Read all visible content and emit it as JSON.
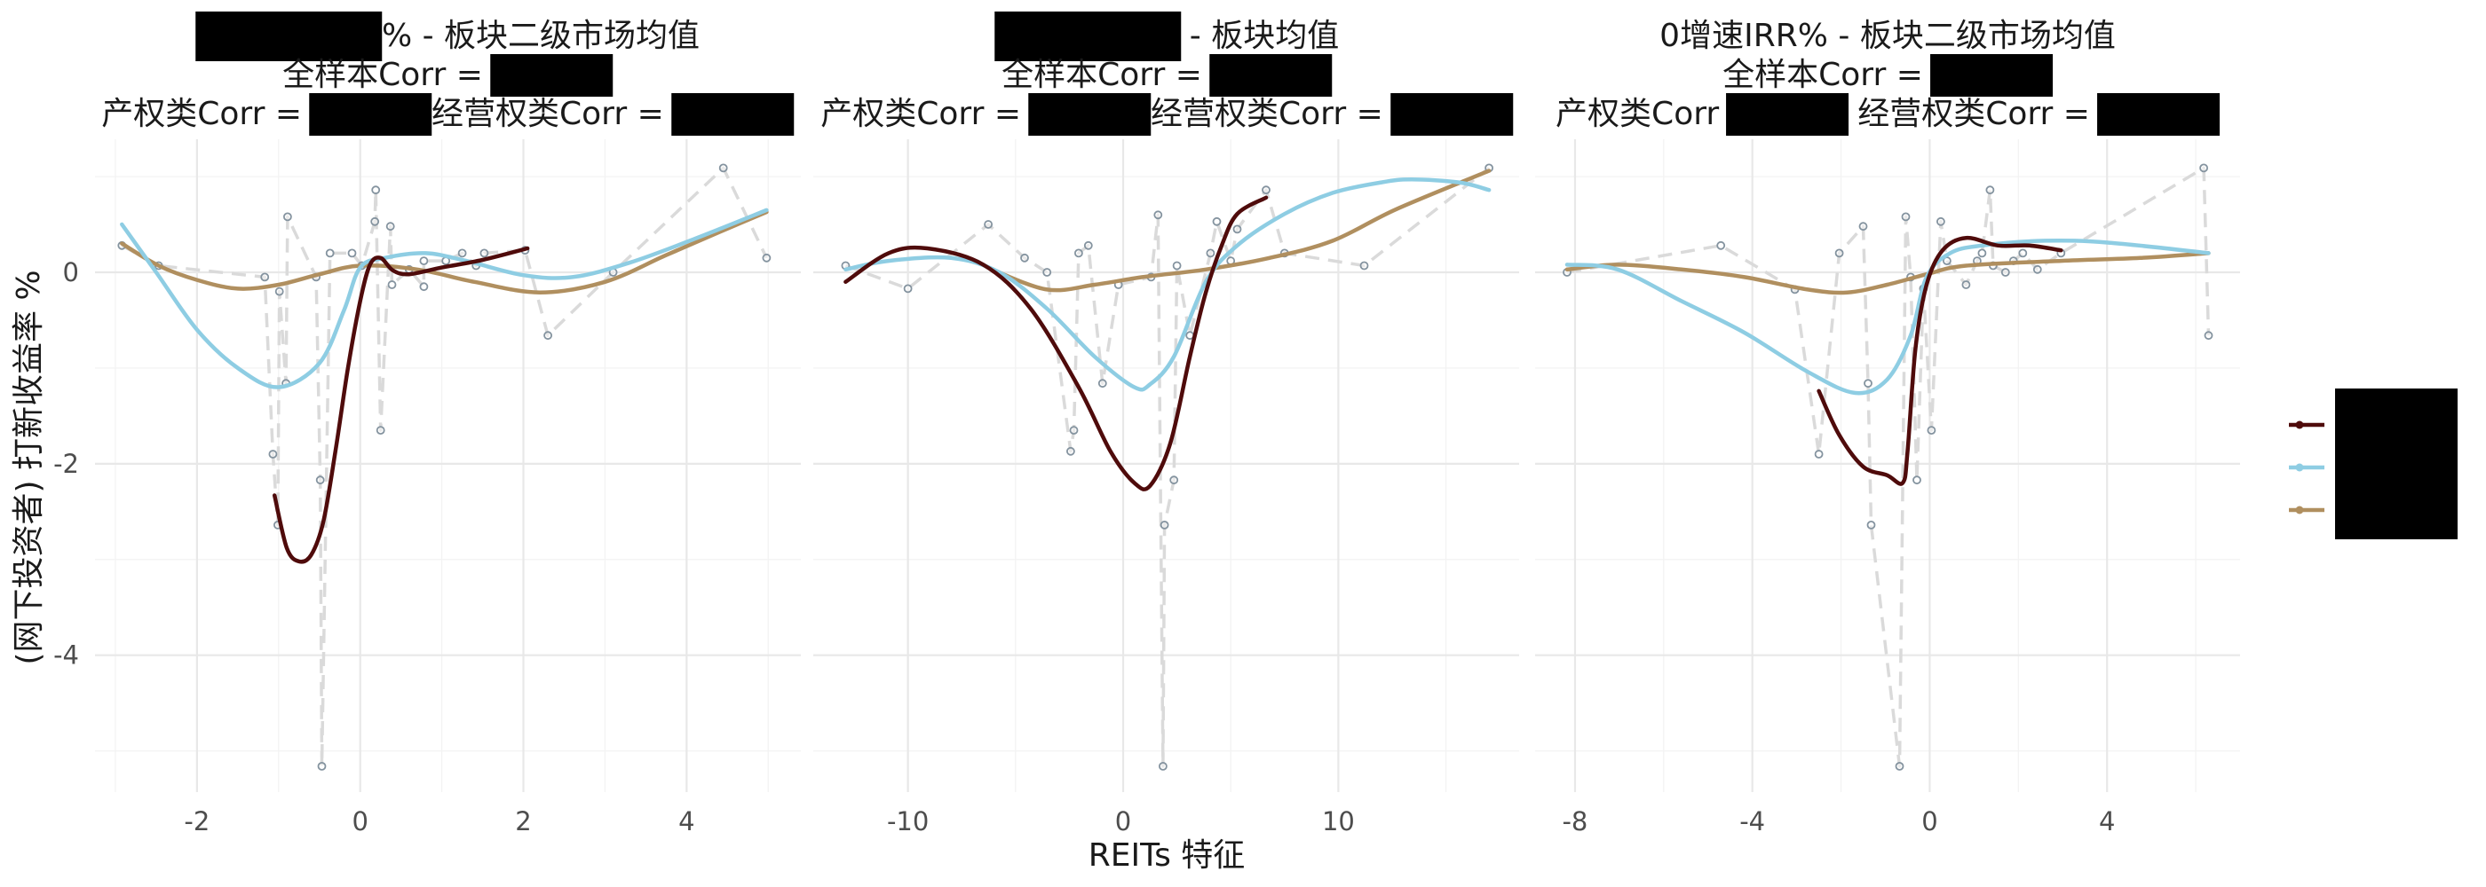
{
  "chart_data": {
    "type": "line",
    "xlabel": "REITs 特征",
    "ylabel": "(网下投资者) 打新收益率 %",
    "ylim": [
      -5.43,
      1.39
    ],
    "yticks": [
      0,
      -2,
      -4
    ],
    "grid": true,
    "legend_position": "right",
    "series_styles": [
      {
        "color": "#4f0b0b"
      },
      {
        "color": "#8ecde3"
      },
      {
        "color": "#b08f5f"
      }
    ],
    "scatter_color": "#84939f",
    "connector_color": "#dadada",
    "panels": [
      {
        "title": {
          "line1": "% - 板块二级市场均值",
          "line2": "全样本Corr =",
          "line3a": "产权类Corr =",
          "line3b": "经营权类Corr ="
        },
        "xlim": [
          -3.25,
          5.4
        ],
        "xticks": [
          -2,
          0,
          2,
          4
        ],
        "points": [
          [
            -2.92,
            0.28
          ],
          [
            -2.47,
            0.07
          ],
          [
            -1.17,
            -0.05
          ],
          [
            -1.07,
            -1.9
          ],
          [
            -1.01,
            -2.64
          ],
          [
            -0.99,
            -0.2
          ],
          [
            -0.91,
            -1.16
          ],
          [
            -0.89,
            0.58
          ],
          [
            -0.54,
            -0.05
          ],
          [
            -0.49,
            -2.17
          ],
          [
            -0.47,
            -5.16
          ],
          [
            -0.37,
            0.2
          ],
          [
            -0.1,
            0.2
          ],
          [
            0.02,
            0.07
          ],
          [
            0.18,
            0.53
          ],
          [
            0.19,
            0.86
          ],
          [
            0.25,
            -1.65
          ],
          [
            0.37,
            0.48
          ],
          [
            0.39,
            -0.13
          ],
          [
            0.6,
            0.03
          ],
          [
            0.78,
            -0.15
          ],
          [
            0.78,
            0.12
          ],
          [
            1.05,
            0.12
          ],
          [
            1.25,
            0.2
          ],
          [
            1.42,
            0.07
          ],
          [
            1.52,
            0.2
          ],
          [
            2.02,
            0.23
          ],
          [
            2.3,
            -0.66
          ],
          [
            3.1,
            0.0
          ],
          [
            4.45,
            1.09
          ],
          [
            4.98,
            0.15
          ]
        ],
        "series": [
          {
            "values": [
              [
                -1.05,
                -2.33
              ],
              [
                -0.9,
                -2.88
              ],
              [
                -0.75,
                -3.02
              ],
              [
                -0.6,
                -2.95
              ],
              [
                -0.45,
                -2.6
              ],
              [
                -0.3,
                -1.85
              ],
              [
                -0.15,
                -1.0
              ],
              [
                0.0,
                -0.3
              ],
              [
                0.12,
                0.08
              ],
              [
                0.25,
                0.15
              ],
              [
                0.4,
                0.02
              ],
              [
                0.6,
                -0.02
              ],
              [
                1.0,
                0.05
              ],
              [
                1.5,
                0.13
              ],
              [
                2.05,
                0.25
              ]
            ]
          },
          {
            "values": [
              [
                -2.92,
                0.5
              ],
              [
                -2.5,
                0.0
              ],
              [
                -2.0,
                -0.6
              ],
              [
                -1.5,
                -1.0
              ],
              [
                -1.0,
                -1.2
              ],
              [
                -0.5,
                -0.95
              ],
              [
                -0.2,
                -0.4
              ],
              [
                0.0,
                0.05
              ],
              [
                0.3,
                0.15
              ],
              [
                0.8,
                0.2
              ],
              [
                1.3,
                0.12
              ],
              [
                2.0,
                -0.03
              ],
              [
                2.6,
                -0.05
              ],
              [
                3.3,
                0.1
              ],
              [
                4.1,
                0.35
              ],
              [
                4.98,
                0.65
              ]
            ]
          },
          {
            "values": [
              [
                -2.92,
                0.3
              ],
              [
                -2.47,
                0.07
              ],
              [
                -2.0,
                -0.08
              ],
              [
                -1.5,
                -0.17
              ],
              [
                -1.0,
                -0.13
              ],
              [
                -0.5,
                -0.02
              ],
              [
                0.0,
                0.07
              ],
              [
                0.7,
                0.03
              ],
              [
                1.4,
                -0.1
              ],
              [
                2.2,
                -0.21
              ],
              [
                3.0,
                -0.1
              ],
              [
                3.75,
                0.18
              ],
              [
                4.4,
                0.42
              ],
              [
                4.98,
                0.63
              ]
            ]
          }
        ]
      },
      {
        "title": {
          "line1": "- 板块均值",
          "line2": "全样本Corr =",
          "line3a": "产权类Corr =",
          "line3b": "经营权类Corr ="
        },
        "xlim": [
          -14.4,
          18.4
        ],
        "xticks": [
          -10,
          0,
          10
        ],
        "points": [
          [
            -12.9,
            0.07
          ],
          [
            -10.0,
            -0.17
          ],
          [
            -6.27,
            0.5
          ],
          [
            -4.58,
            0.15
          ],
          [
            -3.54,
            0.0
          ],
          [
            -2.44,
            -1.87
          ],
          [
            -2.29,
            -1.65
          ],
          [
            -2.07,
            0.2
          ],
          [
            -1.62,
            0.28
          ],
          [
            -0.96,
            -1.16
          ],
          [
            -0.22,
            -0.13
          ],
          [
            1.3,
            -0.05
          ],
          [
            1.62,
            0.6
          ],
          [
            1.85,
            -5.16
          ],
          [
            1.92,
            -2.64
          ],
          [
            2.36,
            -2.17
          ],
          [
            2.5,
            0.07
          ],
          [
            3.1,
            -0.66
          ],
          [
            4.06,
            0.2
          ],
          [
            4.35,
            0.53
          ],
          [
            5.0,
            0.12
          ],
          [
            5.3,
            0.45
          ],
          [
            6.64,
            0.86
          ],
          [
            7.5,
            0.2
          ],
          [
            11.2,
            0.07
          ],
          [
            17.0,
            1.09
          ]
        ],
        "series": [
          {
            "values": [
              [
                -12.9,
                -0.1
              ],
              [
                -10.9,
                0.2
              ],
              [
                -9.1,
                0.25
              ],
              [
                -6.5,
                0.08
              ],
              [
                -4.3,
                -0.38
              ],
              [
                -2.07,
                -1.2
              ],
              [
                -0.59,
                -1.87
              ],
              [
                0.52,
                -2.2
              ],
              [
                1.25,
                -2.23
              ],
              [
                2.2,
                -1.78
              ],
              [
                3.1,
                -0.88
              ],
              [
                3.84,
                -0.21
              ],
              [
                4.58,
                0.28
              ],
              [
                5.3,
                0.61
              ],
              [
                6.64,
                0.78
              ]
            ]
          },
          {
            "values": [
              [
                -12.9,
                0.03
              ],
              [
                -10.9,
                0.12
              ],
              [
                -8.0,
                0.15
              ],
              [
                -5.76,
                0.0
              ],
              [
                -3.54,
                -0.38
              ],
              [
                -1.33,
                -0.88
              ],
              [
                0.52,
                -1.2
              ],
              [
                1.25,
                -1.17
              ],
              [
                2.36,
                -0.88
              ],
              [
                3.84,
                -0.1
              ],
              [
                5.3,
                0.28
              ],
              [
                7.5,
                0.61
              ],
              [
                9.74,
                0.83
              ],
              [
                12.0,
                0.94
              ],
              [
                13.4,
                0.97
              ],
              [
                15.6,
                0.94
              ],
              [
                17.0,
                0.86
              ]
            ]
          },
          {
            "values": [
              [
                -6.1,
                0.03
              ],
              [
                -3.54,
                -0.18
              ],
              [
                -1.33,
                -0.13
              ],
              [
                0.89,
                -0.05
              ],
              [
                3.84,
                0.03
              ],
              [
                6.8,
                0.15
              ],
              [
                9.74,
                0.33
              ],
              [
                12.7,
                0.66
              ],
              [
                17.0,
                1.06
              ]
            ]
          }
        ]
      },
      {
        "title": {
          "line1": "0增速IRR% - 板块二级市场均值",
          "line2": "全样本Corr =",
          "line3a": "产权类Corr",
          "line3b": "经营权类Corr ="
        },
        "xlim": [
          -8.9,
          7.0
        ],
        "xticks": [
          -8,
          -4,
          0,
          4
        ],
        "points": [
          [
            -8.18,
            0.0
          ],
          [
            -4.71,
            0.28
          ],
          [
            -3.04,
            -0.18
          ],
          [
            -2.5,
            -1.9
          ],
          [
            -2.04,
            0.2
          ],
          [
            -1.5,
            0.48
          ],
          [
            -1.39,
            -1.16
          ],
          [
            -1.32,
            -2.64
          ],
          [
            -0.68,
            -5.16
          ],
          [
            -0.54,
            0.58
          ],
          [
            -0.43,
            -0.05
          ],
          [
            -0.29,
            -2.17
          ],
          [
            -0.14,
            -0.17
          ],
          [
            0.04,
            -1.65
          ],
          [
            0.25,
            0.53
          ],
          [
            0.39,
            0.12
          ],
          [
            0.82,
            -0.13
          ],
          [
            1.07,
            0.12
          ],
          [
            1.18,
            0.2
          ],
          [
            1.36,
            0.86
          ],
          [
            1.43,
            0.07
          ],
          [
            1.71,
            0.0
          ],
          [
            1.89,
            0.12
          ],
          [
            2.1,
            0.2
          ],
          [
            2.43,
            0.03
          ],
          [
            2.96,
            0.2
          ],
          [
            6.18,
            1.09
          ],
          [
            6.29,
            -0.66
          ]
        ],
        "series": [
          {
            "values": [
              [
                -2.5,
                -1.24
              ],
              [
                -2.04,
                -1.7
              ],
              [
                -1.5,
                -2.03
              ],
              [
                -0.96,
                -2.12
              ],
              [
                -0.61,
                -2.2
              ],
              [
                -0.5,
                -1.87
              ],
              [
                -0.32,
                -0.79
              ],
              [
                -0.07,
                -0.13
              ],
              [
                0.29,
                0.23
              ],
              [
                0.82,
                0.36
              ],
              [
                1.54,
                0.28
              ],
              [
                2.25,
                0.28
              ],
              [
                2.96,
                0.23
              ]
            ]
          },
          {
            "values": [
              [
                -8.18,
                0.08
              ],
              [
                -7.04,
                0.03
              ],
              [
                -5.6,
                -0.3
              ],
              [
                -4.18,
                -0.63
              ],
              [
                -2.75,
                -1.04
              ],
              [
                -1.68,
                -1.26
              ],
              [
                -0.96,
                -1.12
              ],
              [
                -0.43,
                -0.66
              ],
              [
                -0.07,
                -0.05
              ],
              [
                0.46,
                0.2
              ],
              [
                1.18,
                0.28
              ],
              [
                2.6,
                0.33
              ],
              [
                4.04,
                0.31
              ],
              [
                6.29,
                0.2
              ]
            ]
          },
          {
            "values": [
              [
                -8.18,
                0.03
              ],
              [
                -7.04,
                0.08
              ],
              [
                -5.6,
                0.03
              ],
              [
                -4.18,
                -0.05
              ],
              [
                -2.75,
                -0.18
              ],
              [
                -1.86,
                -0.21
              ],
              [
                -0.96,
                -0.13
              ],
              [
                -0.07,
                -0.02
              ],
              [
                0.82,
                0.07
              ],
              [
                2.96,
                0.12
              ],
              [
                4.75,
                0.15
              ],
              [
                6.29,
                0.2
              ]
            ]
          }
        ]
      }
    ]
  }
}
